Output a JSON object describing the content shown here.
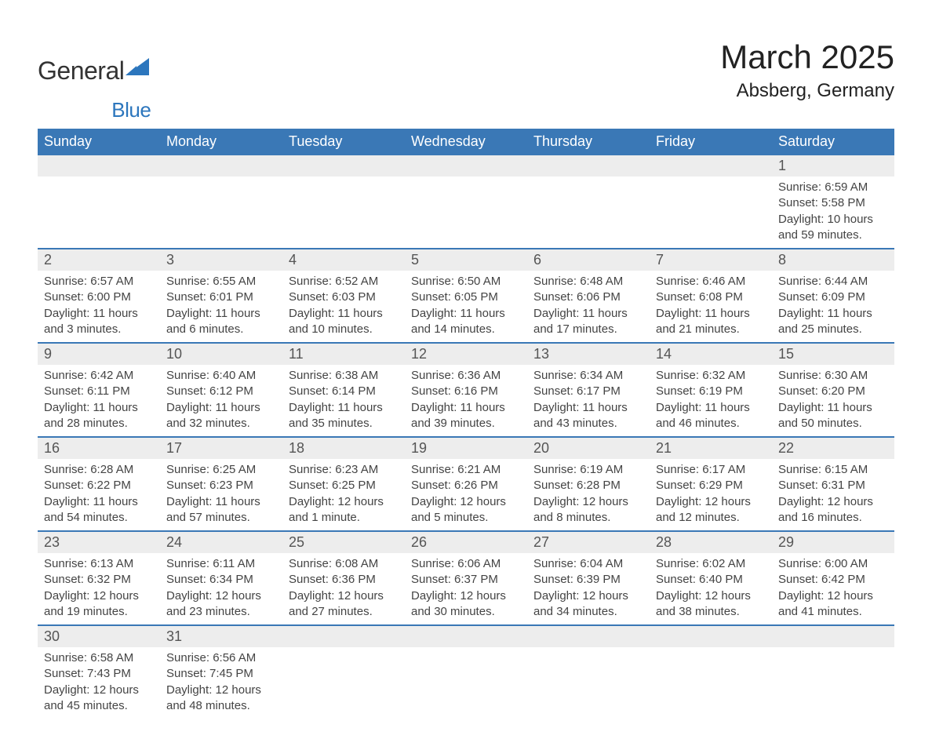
{
  "logo": {
    "general": "General",
    "blue": "Blue"
  },
  "title": "March 2025",
  "location": "Absberg, Germany",
  "colors": {
    "header_bg": "#3a78b6",
    "header_text": "#ffffff",
    "daynum_bg": "#ededed",
    "row_border": "#3a78b6",
    "body_text": "#444444",
    "title_text": "#222222",
    "logo_blue": "#2c76bd"
  },
  "day_headers": [
    "Sunday",
    "Monday",
    "Tuesday",
    "Wednesday",
    "Thursday",
    "Friday",
    "Saturday"
  ],
  "weeks": [
    {
      "nums": [
        "",
        "",
        "",
        "",
        "",
        "",
        "1"
      ],
      "details": [
        "",
        "",
        "",
        "",
        "",
        "",
        "Sunrise: 6:59 AM\nSunset: 5:58 PM\nDaylight: 10 hours and 59 minutes."
      ]
    },
    {
      "nums": [
        "2",
        "3",
        "4",
        "5",
        "6",
        "7",
        "8"
      ],
      "details": [
        "Sunrise: 6:57 AM\nSunset: 6:00 PM\nDaylight: 11 hours and 3 minutes.",
        "Sunrise: 6:55 AM\nSunset: 6:01 PM\nDaylight: 11 hours and 6 minutes.",
        "Sunrise: 6:52 AM\nSunset: 6:03 PM\nDaylight: 11 hours and 10 minutes.",
        "Sunrise: 6:50 AM\nSunset: 6:05 PM\nDaylight: 11 hours and 14 minutes.",
        "Sunrise: 6:48 AM\nSunset: 6:06 PM\nDaylight: 11 hours and 17 minutes.",
        "Sunrise: 6:46 AM\nSunset: 6:08 PM\nDaylight: 11 hours and 21 minutes.",
        "Sunrise: 6:44 AM\nSunset: 6:09 PM\nDaylight: 11 hours and 25 minutes."
      ]
    },
    {
      "nums": [
        "9",
        "10",
        "11",
        "12",
        "13",
        "14",
        "15"
      ],
      "details": [
        "Sunrise: 6:42 AM\nSunset: 6:11 PM\nDaylight: 11 hours and 28 minutes.",
        "Sunrise: 6:40 AM\nSunset: 6:12 PM\nDaylight: 11 hours and 32 minutes.",
        "Sunrise: 6:38 AM\nSunset: 6:14 PM\nDaylight: 11 hours and 35 minutes.",
        "Sunrise: 6:36 AM\nSunset: 6:16 PM\nDaylight: 11 hours and 39 minutes.",
        "Sunrise: 6:34 AM\nSunset: 6:17 PM\nDaylight: 11 hours and 43 minutes.",
        "Sunrise: 6:32 AM\nSunset: 6:19 PM\nDaylight: 11 hours and 46 minutes.",
        "Sunrise: 6:30 AM\nSunset: 6:20 PM\nDaylight: 11 hours and 50 minutes."
      ]
    },
    {
      "nums": [
        "16",
        "17",
        "18",
        "19",
        "20",
        "21",
        "22"
      ],
      "details": [
        "Sunrise: 6:28 AM\nSunset: 6:22 PM\nDaylight: 11 hours and 54 minutes.",
        "Sunrise: 6:25 AM\nSunset: 6:23 PM\nDaylight: 11 hours and 57 minutes.",
        "Sunrise: 6:23 AM\nSunset: 6:25 PM\nDaylight: 12 hours and 1 minute.",
        "Sunrise: 6:21 AM\nSunset: 6:26 PM\nDaylight: 12 hours and 5 minutes.",
        "Sunrise: 6:19 AM\nSunset: 6:28 PM\nDaylight: 12 hours and 8 minutes.",
        "Sunrise: 6:17 AM\nSunset: 6:29 PM\nDaylight: 12 hours and 12 minutes.",
        "Sunrise: 6:15 AM\nSunset: 6:31 PM\nDaylight: 12 hours and 16 minutes."
      ]
    },
    {
      "nums": [
        "23",
        "24",
        "25",
        "26",
        "27",
        "28",
        "29"
      ],
      "details": [
        "Sunrise: 6:13 AM\nSunset: 6:32 PM\nDaylight: 12 hours and 19 minutes.",
        "Sunrise: 6:11 AM\nSunset: 6:34 PM\nDaylight: 12 hours and 23 minutes.",
        "Sunrise: 6:08 AM\nSunset: 6:36 PM\nDaylight: 12 hours and 27 minutes.",
        "Sunrise: 6:06 AM\nSunset: 6:37 PM\nDaylight: 12 hours and 30 minutes.",
        "Sunrise: 6:04 AM\nSunset: 6:39 PM\nDaylight: 12 hours and 34 minutes.",
        "Sunrise: 6:02 AM\nSunset: 6:40 PM\nDaylight: 12 hours and 38 minutes.",
        "Sunrise: 6:00 AM\nSunset: 6:42 PM\nDaylight: 12 hours and 41 minutes."
      ]
    },
    {
      "nums": [
        "30",
        "31",
        "",
        "",
        "",
        "",
        ""
      ],
      "details": [
        "Sunrise: 6:58 AM\nSunset: 7:43 PM\nDaylight: 12 hours and 45 minutes.",
        "Sunrise: 6:56 AM\nSunset: 7:45 PM\nDaylight: 12 hours and 48 minutes.",
        "",
        "",
        "",
        "",
        ""
      ]
    }
  ]
}
